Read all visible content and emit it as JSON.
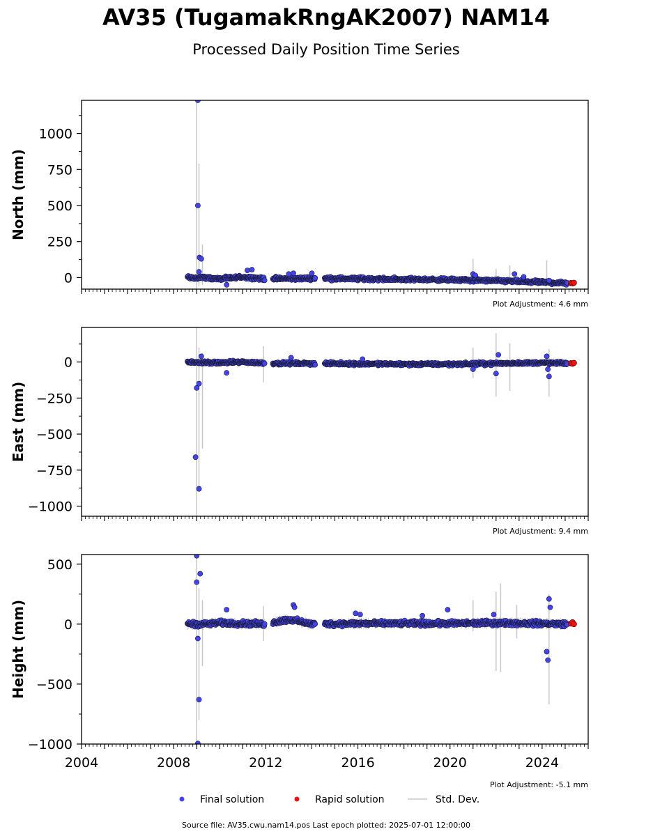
{
  "title": "AV35 (TugamakRngAK2007) NAM14",
  "subtitle": "Processed Daily Position Time Series",
  "source_text": "Source file: AV35.cwu.nam14.pos  Last epoch plotted: 2025-07-01 12:00:00",
  "legend": {
    "final": "Final solution",
    "rapid": "Rapid solution",
    "std": "Std. Dev."
  },
  "colors": {
    "final": "#4444ee",
    "rapid": "#ee1111",
    "std": "#c8c8c8",
    "edge": "#1a1a33"
  },
  "chart_data": [
    {
      "type": "scatter",
      "ylabel": "North (mm)",
      "ylim": [
        -80,
        1230
      ],
      "yticks": [
        0,
        250,
        500,
        750,
        1000
      ],
      "xlim": [
        2004,
        2026
      ],
      "adjustment": "Plot Adjustment: 4.6 mm",
      "base": [
        [
          2008.6,
          0
        ],
        [
          2009.4,
          0
        ],
        [
          2010.0,
          -10
        ],
        [
          2011.0,
          5
        ],
        [
          2012.0,
          -8
        ],
        [
          2014.0,
          -5
        ],
        [
          2016.0,
          -8
        ],
        [
          2018.0,
          -12
        ],
        [
          2020.0,
          -15
        ],
        [
          2022.0,
          -22
        ],
        [
          2024.0,
          -32
        ],
        [
          2025.3,
          -40
        ]
      ],
      "gaps": [
        [
          2011.95,
          2012.3
        ],
        [
          2014.15,
          2014.55
        ],
        [
          2025.1,
          2025.2
        ]
      ],
      "noise": 8,
      "outliers": [
        [
          2009.05,
          1230
        ],
        [
          2009.05,
          500
        ],
        [
          2009.12,
          140
        ],
        [
          2009.2,
          130
        ],
        [
          2009.1,
          40
        ],
        [
          2010.3,
          -50
        ],
        [
          2011.2,
          50
        ],
        [
          2011.4,
          55
        ],
        [
          2013.0,
          25
        ],
        [
          2013.2,
          30
        ],
        [
          2014.0,
          30
        ],
        [
          2021.0,
          25
        ],
        [
          2021.1,
          15
        ],
        [
          2022.8,
          25
        ],
        [
          2023.2,
          5
        ],
        [
          2024.3,
          -20
        ]
      ],
      "stdbars": [
        [
          2009.0,
          -80,
          1230
        ],
        [
          2009.1,
          -60,
          790
        ],
        [
          2009.25,
          -50,
          230
        ],
        [
          2009.0,
          100,
          340
        ],
        [
          2021.0,
          -30,
          130
        ],
        [
          2022.0,
          -40,
          60
        ],
        [
          2022.6,
          -35,
          85
        ],
        [
          2024.2,
          -60,
          120
        ]
      ],
      "rapid": [
        [
          2025.25,
          -38
        ],
        [
          2025.32,
          -40
        ],
        [
          2025.38,
          -36
        ]
      ]
    },
    {
      "type": "scatter",
      "ylabel": "East (mm)",
      "ylim": [
        -1070,
        240
      ],
      "yticks": [
        -1000,
        -750,
        -500,
        -250,
        0
      ],
      "xlim": [
        2004,
        2026
      ],
      "adjustment": "Plot Adjustment: 9.4 mm",
      "base": [
        [
          2008.6,
          0
        ],
        [
          2009.4,
          -5
        ],
        [
          2010.0,
          -5
        ],
        [
          2011.0,
          0
        ],
        [
          2012.0,
          -8
        ],
        [
          2014.0,
          -10
        ],
        [
          2016.0,
          -12
        ],
        [
          2018.0,
          -15
        ],
        [
          2020.0,
          -15
        ],
        [
          2022.0,
          -10
        ],
        [
          2024.0,
          -5
        ],
        [
          2025.3,
          -10
        ]
      ],
      "gaps": [
        [
          2011.95,
          2012.3
        ],
        [
          2014.15,
          2014.55
        ],
        [
          2025.1,
          2025.2
        ]
      ],
      "noise": 7,
      "outliers": [
        [
          2008.95,
          -660
        ],
        [
          2009.1,
          -880
        ],
        [
          2009.0,
          -180
        ],
        [
          2009.1,
          -150
        ],
        [
          2009.2,
          40
        ],
        [
          2010.3,
          -75
        ],
        [
          2013.1,
          30
        ],
        [
          2016.2,
          20
        ],
        [
          2021.0,
          -50
        ],
        [
          2022.0,
          -80
        ],
        [
          2022.1,
          50
        ],
        [
          2024.2,
          40
        ],
        [
          2024.25,
          -50
        ],
        [
          2024.3,
          -100
        ]
      ],
      "stdbars": [
        [
          2009.0,
          -1070,
          240
        ],
        [
          2009.1,
          -900,
          100
        ],
        [
          2009.25,
          -600,
          60
        ],
        [
          2011.9,
          -140,
          110
        ],
        [
          2021.0,
          -110,
          100
        ],
        [
          2022.0,
          -240,
          200
        ],
        [
          2022.6,
          -200,
          130
        ],
        [
          2024.3,
          -240,
          90
        ]
      ],
      "rapid": [
        [
          2025.25,
          -8
        ],
        [
          2025.32,
          -12
        ],
        [
          2025.38,
          -6
        ]
      ]
    },
    {
      "type": "scatter",
      "ylabel": "Height (mm)",
      "ylim": [
        -1000,
        580
      ],
      "yticks": [
        -1000,
        -500,
        0,
        500
      ],
      "xlim": [
        2004,
        2026
      ],
      "adjustment": "Plot Adjustment: -5.1 mm",
      "base": [
        [
          2008.6,
          0
        ],
        [
          2009.4,
          0
        ],
        [
          2010.0,
          10
        ],
        [
          2011.0,
          5
        ],
        [
          2012.0,
          0
        ],
        [
          2013.0,
          40
        ],
        [
          2014.0,
          0
        ],
        [
          2016.0,
          5
        ],
        [
          2018.0,
          5
        ],
        [
          2020.0,
          5
        ],
        [
          2022.0,
          10
        ],
        [
          2024.0,
          5
        ],
        [
          2025.3,
          0
        ]
      ],
      "gaps": [
        [
          2011.95,
          2012.3
        ],
        [
          2014.15,
          2014.55
        ],
        [
          2025.1,
          2025.2
        ]
      ],
      "noise": 14,
      "outliers": [
        [
          2009.0,
          570
        ],
        [
          2009.0,
          350
        ],
        [
          2009.15,
          420
        ],
        [
          2009.05,
          -120
        ],
        [
          2009.1,
          -630
        ],
        [
          2009.05,
          -995
        ],
        [
          2010.3,
          120
        ],
        [
          2013.2,
          160
        ],
        [
          2013.25,
          140
        ],
        [
          2015.9,
          90
        ],
        [
          2016.1,
          80
        ],
        [
          2018.8,
          70
        ],
        [
          2019.9,
          120
        ],
        [
          2021.9,
          80
        ],
        [
          2024.3,
          210
        ],
        [
          2024.35,
          140
        ],
        [
          2024.2,
          -230
        ],
        [
          2024.25,
          -300
        ]
      ],
      "stdbars": [
        [
          2009.0,
          -1000,
          580
        ],
        [
          2009.1,
          -800,
          300
        ],
        [
          2009.25,
          -350,
          200
        ],
        [
          2011.9,
          -140,
          150
        ],
        [
          2021.0,
          -60,
          200
        ],
        [
          2022.0,
          -390,
          270
        ],
        [
          2022.2,
          -400,
          340
        ],
        [
          2022.9,
          -120,
          160
        ],
        [
          2024.3,
          -670,
          250
        ]
      ],
      "rapid": [
        [
          2025.25,
          5
        ],
        [
          2025.32,
          15
        ],
        [
          2025.38,
          0
        ]
      ]
    }
  ]
}
